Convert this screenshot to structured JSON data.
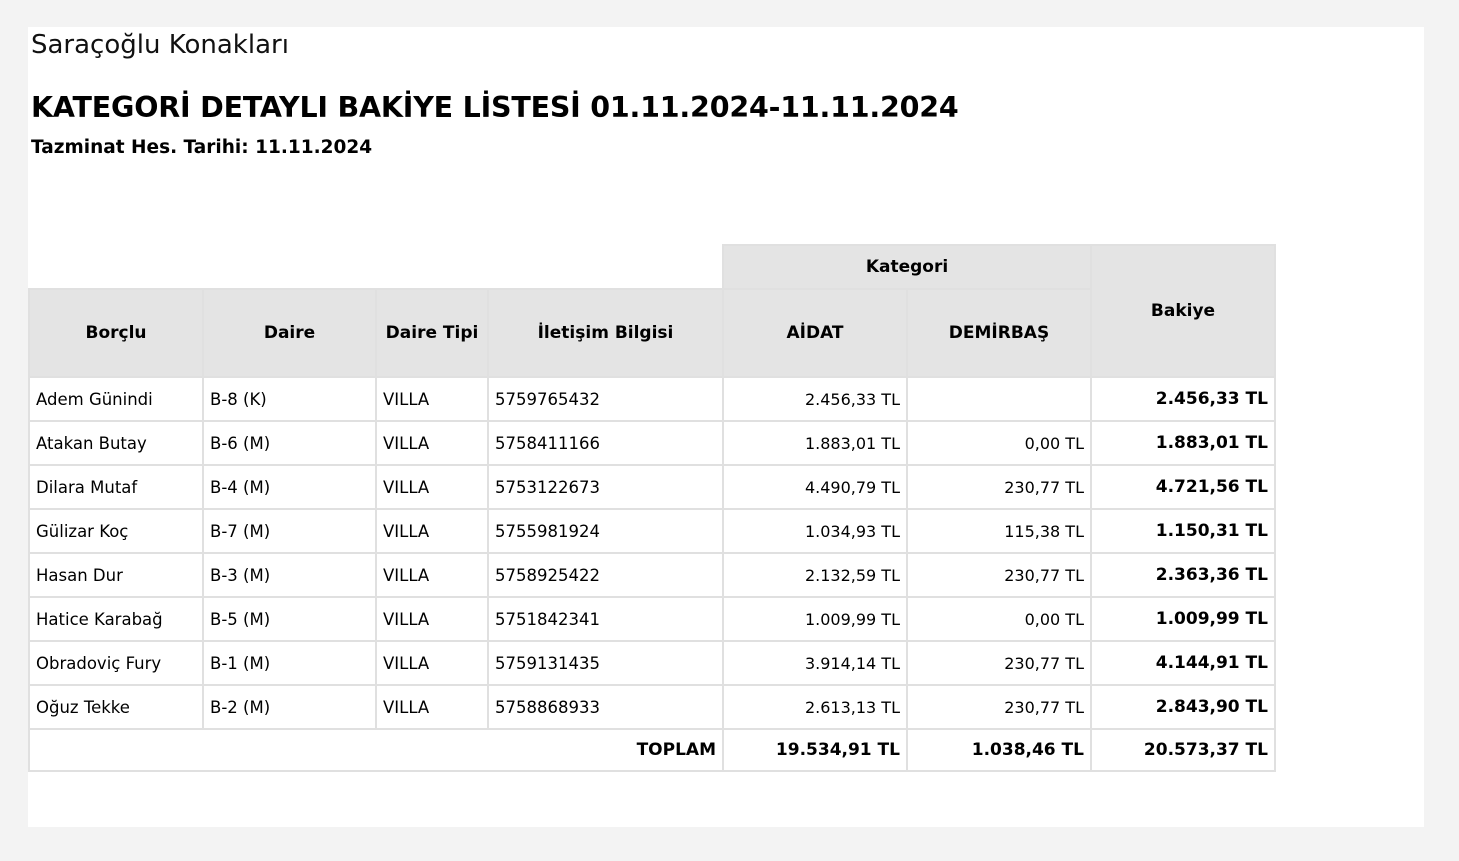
{
  "company_name": "Saraçoğlu Konakları",
  "report_title": "KATEGORİ DETAYLI BAKİYE LİSTESİ 01.11.2024-11.11.2024",
  "compensation_date": "Tazminat Hes. Tarihi: 11.11.2024",
  "table": {
    "group_header": "Kategori",
    "headers": {
      "debtor": "Borçlu",
      "unit": "Daire",
      "unit_type": "Daire Tipi",
      "contact": "İletişim Bilgisi",
      "dues": "AİDAT",
      "fixtures": "DEMİRBAŞ",
      "balance": "Bakiye"
    },
    "rows": [
      {
        "debtor": "Adem Günindi",
        "unit": "B-8 (K)",
        "unit_type": "VILLA",
        "contact": "5759765432",
        "dues": "2.456,33 TL",
        "fixtures": "",
        "balance": "2.456,33 TL"
      },
      {
        "debtor": "Atakan Butay",
        "unit": "B-6 (M)",
        "unit_type": "VILLA",
        "contact": "5758411166",
        "dues": "1.883,01 TL",
        "fixtures": "0,00 TL",
        "balance": "1.883,01 TL"
      },
      {
        "debtor": "Dilara Mutaf",
        "unit": "B-4 (M)",
        "unit_type": "VILLA",
        "contact": "5753122673",
        "dues": "4.490,79 TL",
        "fixtures": "230,77 TL",
        "balance": "4.721,56 TL"
      },
      {
        "debtor": "Gülizar Koç",
        "unit": "B-7 (M)",
        "unit_type": "VILLA",
        "contact": "5755981924",
        "dues": "1.034,93 TL",
        "fixtures": "115,38 TL",
        "balance": "1.150,31 TL"
      },
      {
        "debtor": "Hasan Dur",
        "unit": "B-3 (M)",
        "unit_type": "VILLA",
        "contact": "5758925422",
        "dues": "2.132,59 TL",
        "fixtures": "230,77 TL",
        "balance": "2.363,36 TL"
      },
      {
        "debtor": "Hatice Karabağ",
        "unit": "B-5 (M)",
        "unit_type": "VILLA",
        "contact": "5751842341",
        "dues": "1.009,99 TL",
        "fixtures": "0,00 TL",
        "balance": "1.009,99 TL"
      },
      {
        "debtor": "Obradoviç Fury",
        "unit": "B-1 (M)",
        "unit_type": "VILLA",
        "contact": "5759131435",
        "dues": "3.914,14 TL",
        "fixtures": "230,77 TL",
        "balance": "4.144,91 TL"
      },
      {
        "debtor": "Oğuz Tekke",
        "unit": "B-2 (M)",
        "unit_type": "VILLA",
        "contact": "5758868933",
        "dues": "2.613,13 TL",
        "fixtures": "230,77 TL",
        "balance": "2.843,90 TL"
      }
    ],
    "total": {
      "label": "TOPLAM",
      "dues": "19.534,91 TL",
      "fixtures": "1.038,46 TL",
      "balance": "20.573,37 TL"
    }
  }
}
